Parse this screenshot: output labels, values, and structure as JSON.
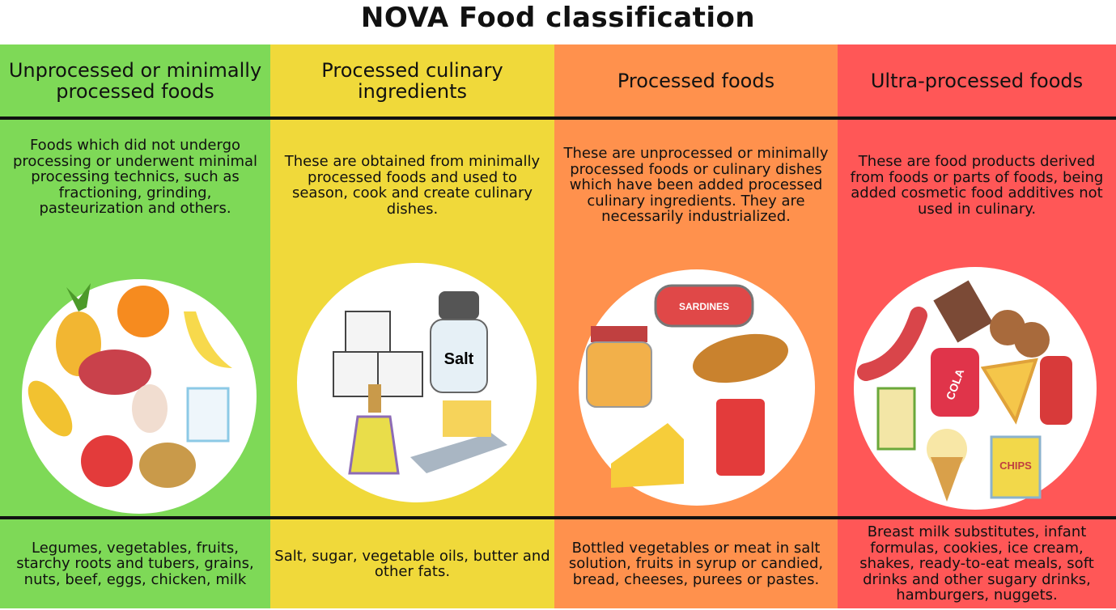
{
  "title": "NOVA Food classification",
  "columns": [
    {
      "header": "Unprocessed or minimally processed foods",
      "color": "#7ed957",
      "description": "Foods which did not undergo processing or underwent minimal processing technics, such as fractioning, grinding, pasteurization and others.",
      "examples": "Legumes, vegetables, fruits, starchy roots and tubers, grains, nuts, beef, eggs, chicken, milk",
      "icons": [
        "pineapple-icon",
        "orange-icon",
        "banana-icon",
        "steak-icon",
        "corn-icon",
        "egg-icon",
        "milk-carton-icon",
        "tomato-icon",
        "potato-icon"
      ]
    },
    {
      "header": "Processed culinary ingredients",
      "color": "#f0d93a",
      "description": "These are obtained from minimally processed foods and used to season, cook and create culinary dishes.",
      "examples": "Salt, sugar, vegetable oils, butter and other fats.",
      "salt_label": "Salt",
      "icons": [
        "sugar-cubes-icon",
        "salt-shaker-icon",
        "oil-bottle-icon",
        "butter-icon"
      ]
    },
    {
      "header": "Processed foods",
      "color": "#ff914d",
      "description": "These are unprocessed or minimally processed foods or culinary dishes which have been added processed culinary ingredients. They are necessarily industrialized.",
      "examples": "Bottled vegetables or meat in salt solution, fruits in syrup or candied, bread, cheeses, purees or pastes.",
      "sardines_label": "SARDINES",
      "icons": [
        "sardine-can-icon",
        "jar-icon",
        "bread-icon",
        "cheese-icon",
        "tomato-paste-jar-icon"
      ]
    },
    {
      "header": "Ultra-processed foods",
      "color": "#ff5757",
      "description": "These are food products derived from foods or parts of foods, being added cosmetic food additives not used in culinary.",
      "examples": "Breast milk substitutes, infant formulas, cookies, ice cream, shakes, ready-to-eat meals, soft drinks and other sugary drinks, hamburgers, nuggets.",
      "cola_label": "COLA",
      "chips_label": "CHIPS",
      "icons": [
        "chocolate-icon",
        "sausage-icon",
        "cookies-icon",
        "cola-can-icon",
        "pizza-icon",
        "ketchup-icon",
        "juice-box-icon",
        "ice-cream-icon",
        "chips-icon"
      ]
    }
  ]
}
